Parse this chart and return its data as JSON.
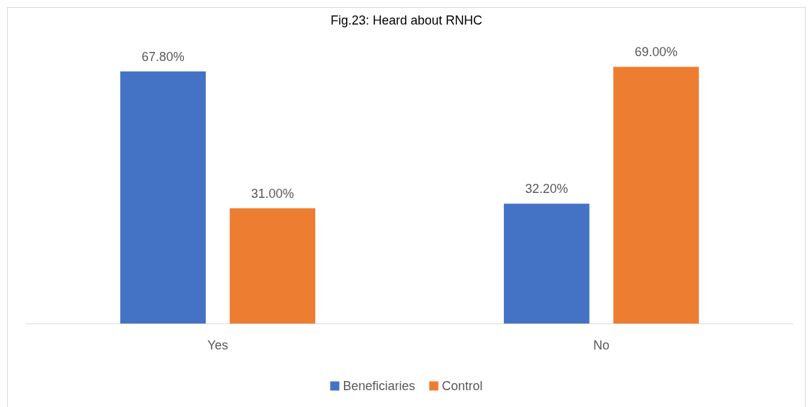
{
  "chart_data": {
    "type": "bar",
    "title": "Fig.23: Heard about RNHC",
    "categories": [
      "Yes",
      "No"
    ],
    "series": [
      {
        "name": "Beneficiaries",
        "color": "#4472c4",
        "values": [
          67.8,
          32.2
        ],
        "value_labels": [
          "67.80%",
          "32.20%"
        ]
      },
      {
        "name": "Control",
        "color": "#ed7d31",
        "values": [
          31.0,
          69.0
        ],
        "value_labels": [
          "31.00%",
          "69.00%"
        ]
      }
    ],
    "legend": "bottom"
  }
}
